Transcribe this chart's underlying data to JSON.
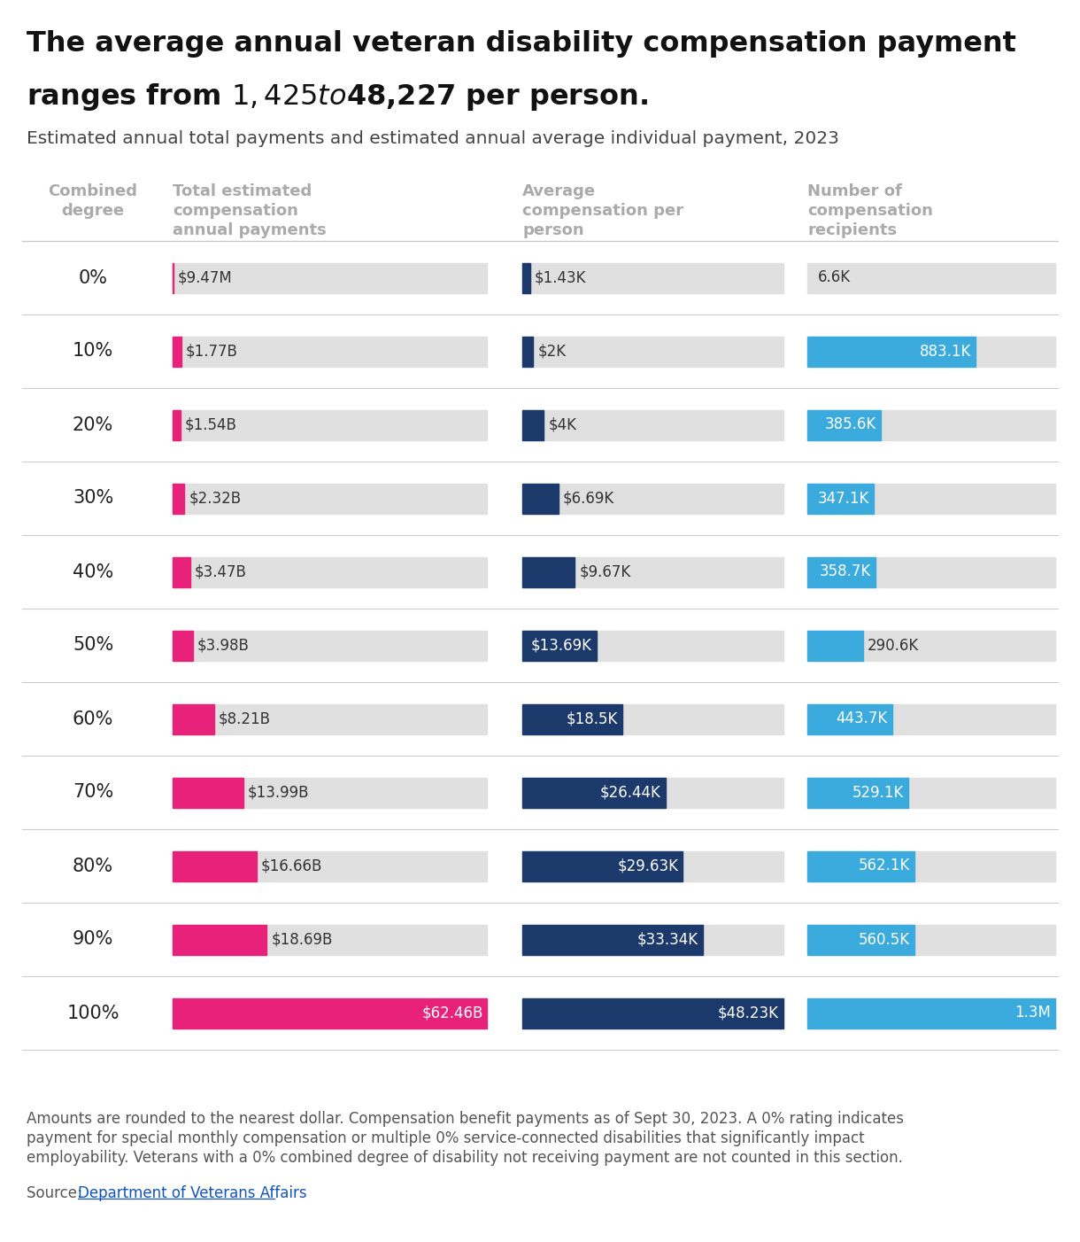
{
  "title_line1": "The average annual veteran disability compensation payment",
  "title_line2": "ranges from $1,425 to $48,227 per person.",
  "subtitle": "Estimated annual total payments and estimated annual average individual payment, 2023",
  "footnote_line1": "Amounts are rounded to the nearest dollar. Compensation benefit payments as of Sept 30, 2023. A 0% rating indicates",
  "footnote_line2": "payment for special monthly compensation or multiple 0% service-connected disabilities that significantly impact",
  "footnote_line3": "employability. Veterans with a 0% combined degree of disability not receiving payment are not counted in this section.",
  "source_prefix": "Source: ",
  "source_link": "Department of Veterans Affairs",
  "col_header_degree": "Combined\ndegree",
  "col_header_total": "Total estimated\ncompensation\nannual payments",
  "col_header_avg": "Average\ncompensation per\nperson",
  "col_header_recip": "Number of\ncompensation\nrecipients",
  "degrees": [
    "0%",
    "10%",
    "20%",
    "30%",
    "40%",
    "50%",
    "60%",
    "70%",
    "80%",
    "90%",
    "100%"
  ],
  "total_payments_B": [
    0.00947,
    1.77,
    1.54,
    2.32,
    3.47,
    3.98,
    8.21,
    13.99,
    16.66,
    18.69,
    62.46
  ],
  "total_payments_labels": [
    "$9.47M",
    "$1.77B",
    "$1.54B",
    "$2.32B",
    "$3.47B",
    "$3.98B",
    "$8.21B",
    "$13.99B",
    "$16.66B",
    "$18.69B",
    "$62.46B"
  ],
  "avg_per_person_K": [
    1.43,
    2.0,
    4.0,
    6.69,
    9.67,
    13.69,
    18.5,
    26.44,
    29.63,
    33.34,
    48.23
  ],
  "avg_per_person_labels": [
    "$1.43K",
    "$2K",
    "$4K",
    "$6.69K",
    "$9.67K",
    "$13.69K",
    "$18.5K",
    "$26.44K",
    "$29.63K",
    "$33.34K",
    "$48.23K"
  ],
  "num_recipients_K": [
    6.6,
    883.1,
    385.6,
    347.1,
    358.7,
    290.6,
    443.7,
    529.1,
    562.1,
    560.5,
    1300.0
  ],
  "num_recipients_labels": [
    "6.6K",
    "883.1K",
    "385.6K",
    "347.1K",
    "358.7K",
    "290.6K",
    "443.7K",
    "529.1K",
    "562.1K",
    "560.5K",
    "1.3M"
  ],
  "color_pink": "#E8217A",
  "color_navy": "#1B3A6B",
  "color_blue": "#3AABDC",
  "color_gray_bar": "#E0E0E0",
  "color_bg": "#FFFFFF",
  "color_header": "#AAAAAA",
  "color_footnote": "#555555",
  "max_total": 62.46,
  "max_avg": 48.23,
  "max_recip": 1300.0
}
